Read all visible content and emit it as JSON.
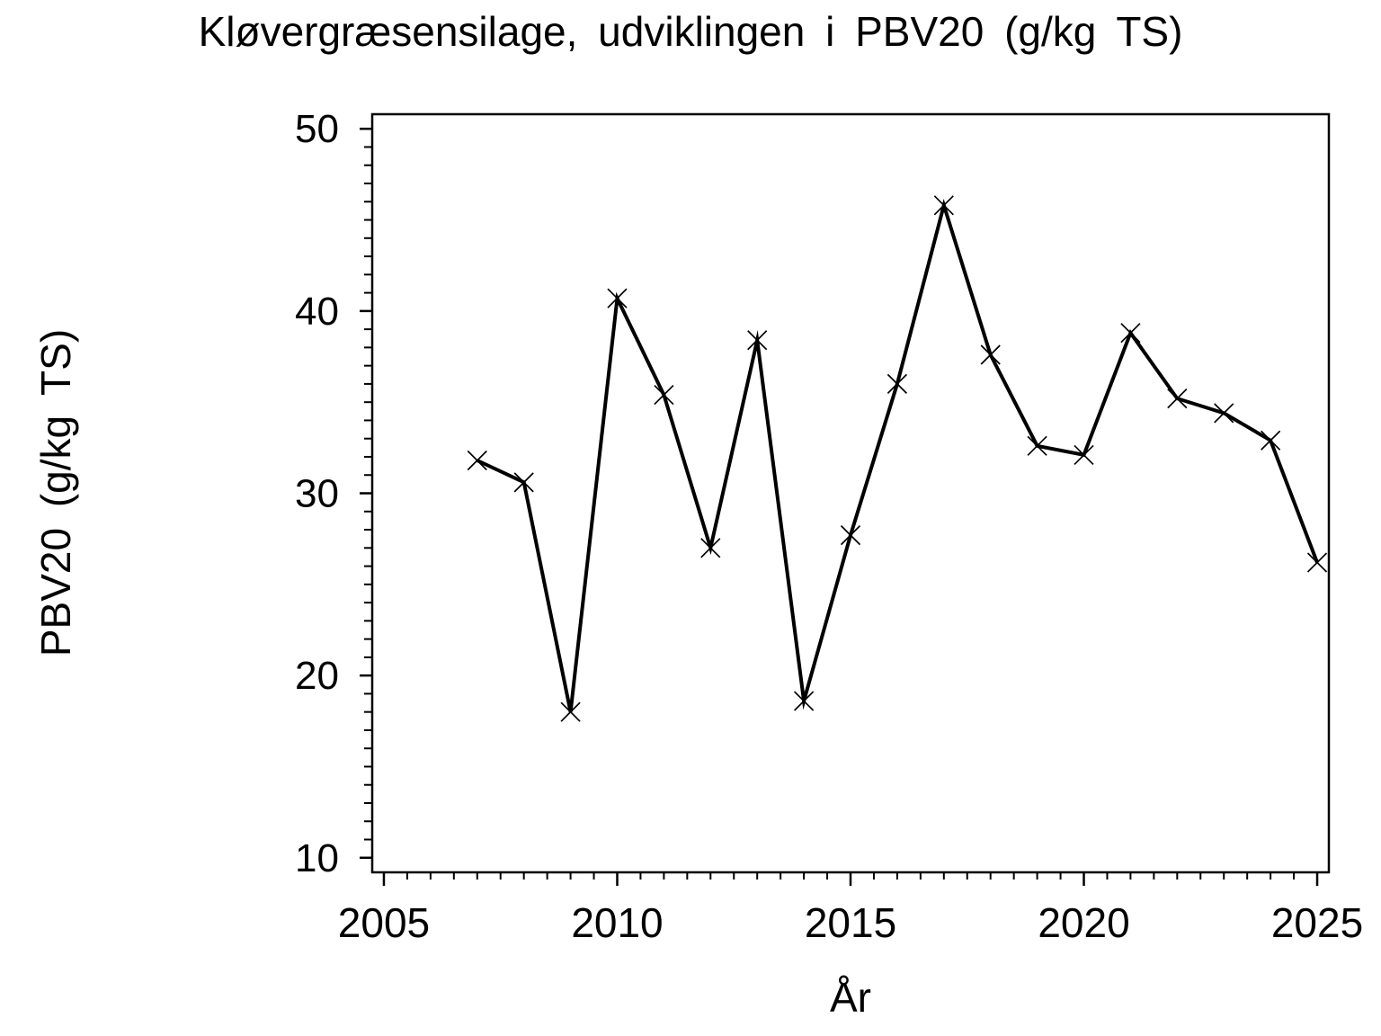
{
  "chart_data": {
    "type": "line",
    "title": "Kløvergræsensilage, udviklingen i PBV20 (g/kg TS)",
    "xlabel": "År",
    "ylabel": "PBV20 (g/kg TS)",
    "series": [
      {
        "name": "PBV20",
        "x": [
          2007,
          2008,
          2009,
          2010,
          2011,
          2012,
          2013,
          2014,
          2015,
          2016,
          2017,
          2018,
          2019,
          2020,
          2021,
          2022,
          2023,
          2024,
          2025
        ],
        "values": [
          31.8,
          30.6,
          18.0,
          40.7,
          35.4,
          27.0,
          38.4,
          18.6,
          27.7,
          36.0,
          45.8,
          37.6,
          32.6,
          32.1,
          38.8,
          35.2,
          34.4,
          32.9,
          26.2
        ]
      }
    ],
    "xlim": [
      2004.75,
      2025.25
    ],
    "ylim": [
      9.2,
      50.8
    ],
    "x_major_ticks": [
      2005,
      2010,
      2015,
      2020,
      2025
    ],
    "x_minor_step": 0.5,
    "y_major_ticks": [
      10,
      20,
      30,
      40,
      50
    ],
    "y_minor_step": 1,
    "marker": "x",
    "line_color": "#000000",
    "axis_color": "#000000",
    "background": "#ffffff",
    "grid": false,
    "legend": "none"
  }
}
